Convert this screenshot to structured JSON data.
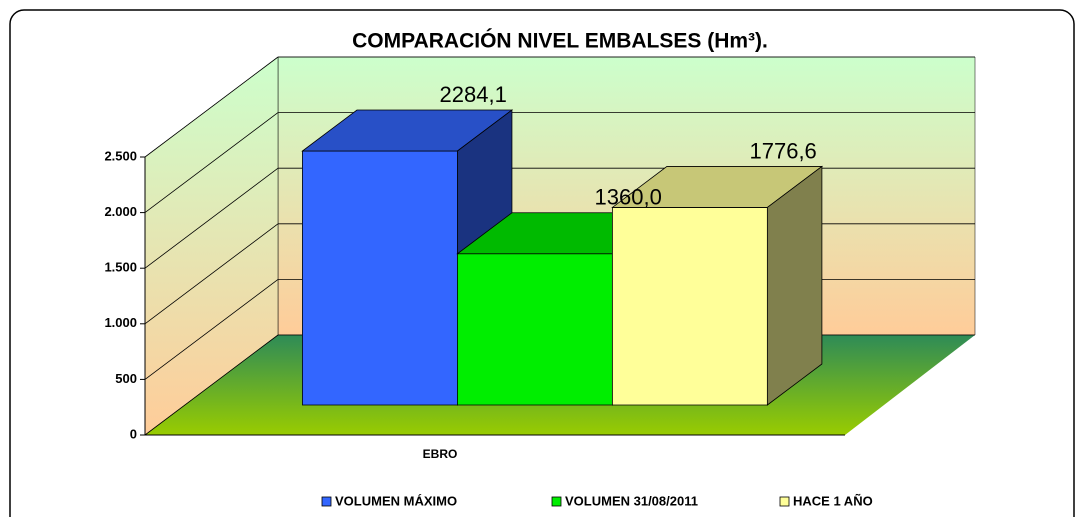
{
  "chart_data": {
    "type": "bar3d",
    "title": "COMPARACIÓN NIVEL EMBALSES (Hm³).",
    "categories": [
      "EBRO"
    ],
    "series": [
      {
        "name": "VOLUMEN MÁXIMO",
        "color": "#3366ff",
        "values": [
          2284.1
        ],
        "value_labels": [
          "2284,1"
        ]
      },
      {
        "name": "VOLUMEN 31/08/2011",
        "color": "#00ee00",
        "values": [
          1360.0
        ],
        "value_labels": [
          "1360,0"
        ]
      },
      {
        "name": "HACE 1 AÑO",
        "color": "#ffff99",
        "values": [
          1776.6
        ],
        "value_labels": [
          "1776,6"
        ]
      }
    ],
    "ylim": [
      0,
      2500
    ],
    "yticks": [
      0,
      500,
      {
        "value": 1000,
        "label": "1.000"
      },
      {
        "value": 1500,
        "label": "1.500"
      },
      {
        "value": 2000,
        "label": "2.000"
      },
      {
        "value": 2500,
        "label": "2.500"
      }
    ],
    "grid": true,
    "legend": "bottom"
  }
}
